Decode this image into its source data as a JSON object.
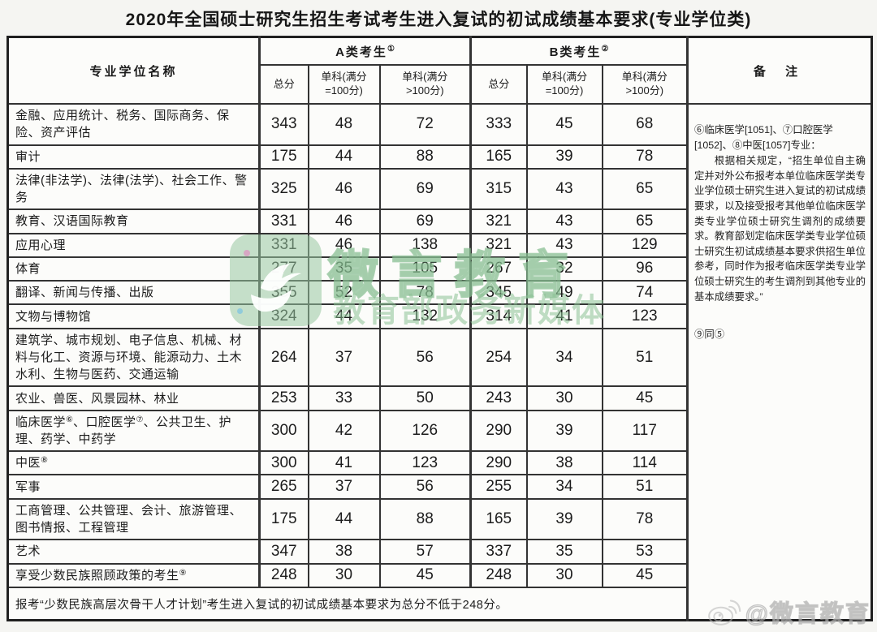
{
  "title": "2020年全国硕士研究生招生考试考生进入复试的初试成绩基本要求(专业学位类)",
  "table": {
    "headers": {
      "name": "专业学位名称",
      "group_a_label": "A类考生",
      "group_a_sup": "①",
      "group_b_label": "B类考生",
      "group_b_sup": "②",
      "sub": [
        "总分",
        "单科(满分\n=100分)",
        "单科(满分\n>100分)"
      ],
      "remark": "备 注"
    },
    "rows": [
      {
        "name": "金融、应用统计、税务、国际商务、保险、资产评估",
        "a": [
          "343",
          "48",
          "72"
        ],
        "b": [
          "333",
          "45",
          "68"
        ]
      },
      {
        "name": "审计",
        "a": [
          "175",
          "44",
          "88"
        ],
        "b": [
          "165",
          "39",
          "78"
        ]
      },
      {
        "name": "法律(非法学)、法律(法学)、社会工作、警务",
        "a": [
          "325",
          "46",
          "69"
        ],
        "b": [
          "315",
          "43",
          "65"
        ]
      },
      {
        "name": "教育、汉语国际教育",
        "a": [
          "331",
          "46",
          "69"
        ],
        "b": [
          "321",
          "43",
          "65"
        ]
      },
      {
        "name": "应用心理",
        "a": [
          "331",
          "46",
          "138"
        ],
        "b": [
          "321",
          "43",
          "129"
        ]
      },
      {
        "name": "体育",
        "a": [
          "277",
          "35",
          "105"
        ],
        "b": [
          "267",
          "32",
          "96"
        ]
      },
      {
        "name": "翻译、新闻与传播、出版",
        "a": [
          "355",
          "52",
          "78"
        ],
        "b": [
          "345",
          "49",
          "74"
        ]
      },
      {
        "name": "文物与博物馆",
        "a": [
          "324",
          "44",
          "132"
        ],
        "b": [
          "314",
          "41",
          "123"
        ]
      },
      {
        "name": "建筑学、城市规划、电子信息、机械、材料与化工、资源与环境、能源动力、土木水利、生物与医药、交通运输",
        "a": [
          "264",
          "37",
          "56"
        ],
        "b": [
          "254",
          "34",
          "51"
        ]
      },
      {
        "name": "农业、兽医、风景园林、林业",
        "a": [
          "253",
          "33",
          "50"
        ],
        "b": [
          "243",
          "30",
          "45"
        ]
      },
      {
        "name": "临床医学⑥、口腔医学⑦、公共卫生、护理、药学、中药学",
        "a": [
          "300",
          "42",
          "126"
        ],
        "b": [
          "290",
          "39",
          "117"
        ]
      },
      {
        "name": "中医⑧",
        "a": [
          "300",
          "41",
          "123"
        ],
        "b": [
          "290",
          "38",
          "114"
        ]
      },
      {
        "name": "军事",
        "a": [
          "265",
          "37",
          "56"
        ],
        "b": [
          "255",
          "34",
          "51"
        ]
      },
      {
        "name": "工商管理、公共管理、会计、旅游管理、图书情报、工程管理",
        "a": [
          "175",
          "44",
          "88"
        ],
        "b": [
          "165",
          "39",
          "78"
        ]
      },
      {
        "name": "艺术",
        "a": [
          "347",
          "38",
          "57"
        ],
        "b": [
          "337",
          "35",
          "53"
        ]
      },
      {
        "name": "享受少数民族照顾政策的考生⑨",
        "a": [
          "248",
          "30",
          "45"
        ],
        "b": [
          "248",
          "30",
          "45"
        ]
      }
    ],
    "remark_content": {
      "head": "⑥临床医学[1051]、⑦口腔医学[1052]、⑧中医[1057]专业：",
      "body": "根据相关规定，“招生单位自主确定并对外公布报考本单位临床医学类专业学位硕士研究生进入复试的初试成绩要求，以及接受报考其他单位临床医学类专业学位硕士研究生调剂的成绩要求。教育部划定临床医学类专业学位硕士研究生初试成绩基本要求供招生单位参考，同时作为报考临床医学类专业学位硕士研究生的考生调剂到其他专业的基本成绩要求。”",
      "note": "⑨同⑤"
    },
    "footer": "报考“少数民族高层次骨干人才计划”考生进入复试的初试成绩基本要求为总分不低于248分。"
  },
  "watermarks": {
    "center_logo": "weiyan-jiaoyu-logo",
    "center_title": "微言教育",
    "center_subtitle": "教育部政务新媒体",
    "corner_icon": "weibo-icon",
    "corner_handle": "@微言教育",
    "green": "#8fc39a"
  }
}
